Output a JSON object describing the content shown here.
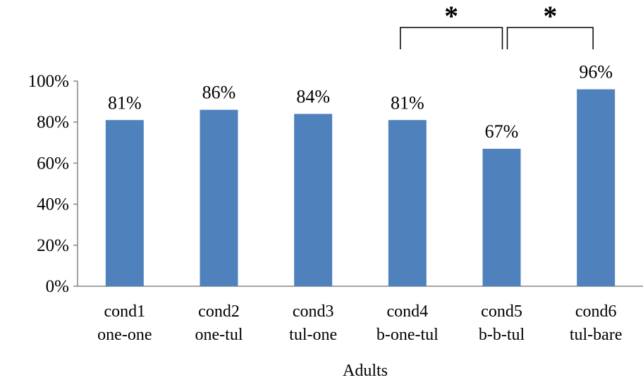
{
  "chart_data": {
    "type": "bar",
    "categories": [
      [
        "cond1",
        "one-one"
      ],
      [
        "cond2",
        "one-tul"
      ],
      [
        "cond3",
        "tul-one"
      ],
      [
        "cond4",
        "b-one-tul"
      ],
      [
        "cond5",
        "b-b-tul"
      ],
      [
        "cond6",
        "tul-bare"
      ]
    ],
    "values": [
      81,
      86,
      84,
      81,
      67,
      96
    ],
    "data_labels": [
      "81%",
      "86%",
      "84%",
      "81%",
      "67%",
      "96%"
    ],
    "title": "",
    "xlabel": "Adults",
    "ylabel": "",
    "ylim": [
      0,
      100
    ],
    "yticks": [
      "0%",
      "20%",
      "40%",
      "60%",
      "80%",
      "100%"
    ],
    "grid": false,
    "legend": "none",
    "bar_color": "#4F81BD",
    "significance": [
      {
        "from": 3,
        "to": 4,
        "label": "*"
      },
      {
        "from": 4,
        "to": 5,
        "label": "*"
      }
    ]
  }
}
